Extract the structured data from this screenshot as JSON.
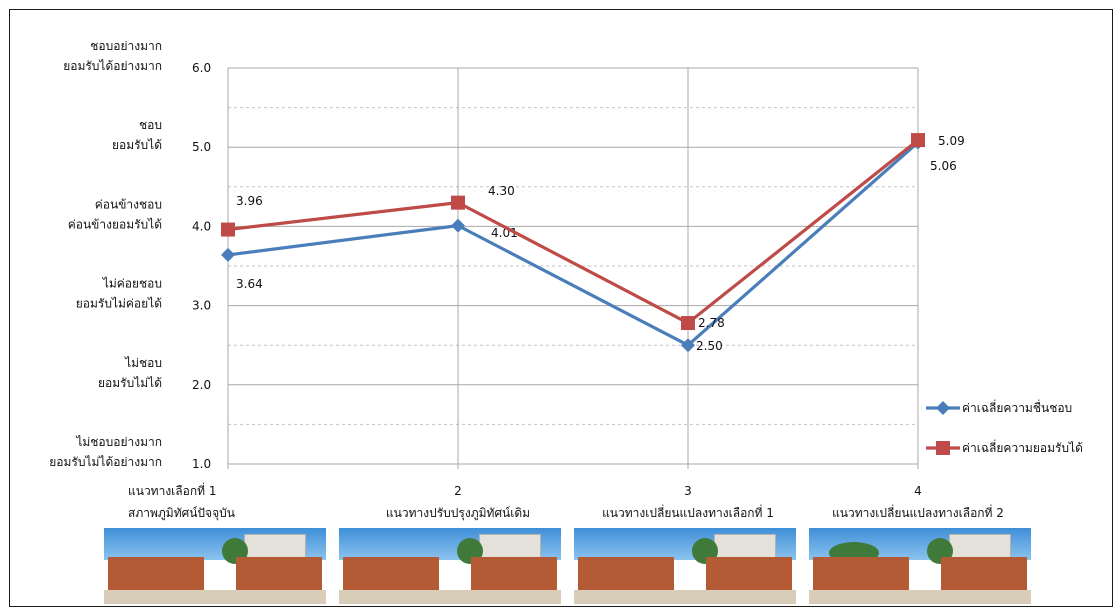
{
  "chart_data": {
    "type": "line",
    "x": [
      "1",
      "2",
      "3",
      "4"
    ],
    "xlabels": [
      "แนวทางเลือกที่ 1\nสภาพภูมิทัศน์ปัจจุบัน",
      "แนวทางปรับปรุงภูมิทัศน์เดิม",
      "แนวทางเปลี่ยนแปลงทางเลือกที่ 1",
      "แนวทางเปลี่ยนแปลงทางเลือกที่ 2"
    ],
    "ylim": [
      1.0,
      6.0
    ],
    "yticks": [
      "1.0",
      "2.0",
      "3.0",
      "4.0",
      "5.0",
      "6.0"
    ],
    "ylevel_labels": [
      [
        "ไม่ชอบอย่างมาก",
        "ยอมรับไม่ได้อย่างมาก"
      ],
      [
        "ไม่ชอบ",
        "ยอมรับไม่ได้"
      ],
      [
        "ไม่ค่อยชอบ",
        "ยอมรับไม่ค่อยได้"
      ],
      [
        "ค่อนข้างชอบ",
        "ค่อนข้างยอมรับได้"
      ],
      [
        "ชอบ",
        "ยอมรับได้"
      ],
      [
        "ชอบอย่างมาก",
        "ยอมรับได้อย่างมาก"
      ]
    ],
    "series": [
      {
        "name": "ค่าเฉลี่ยความชื่นชอบ",
        "values": [
          3.64,
          4.01,
          2.5,
          5.06
        ],
        "labels": [
          "3.64",
          "4.01",
          "2.50",
          "5.06"
        ],
        "color": "#4a7ebb",
        "marker": "diamond"
      },
      {
        "name": "ค่าเฉลี่ยความยอมรับได้",
        "values": [
          3.96,
          4.3,
          2.78,
          5.09
        ],
        "labels": [
          "3.96",
          "4.30",
          "2.78",
          "5.09"
        ],
        "color": "#be4b48",
        "marker": "square"
      }
    ],
    "grid": true,
    "legend": "right"
  },
  "photos": [
    "photo-current-landscape",
    "photo-improved-landscape",
    "photo-alternative-1",
    "photo-alternative-2"
  ]
}
